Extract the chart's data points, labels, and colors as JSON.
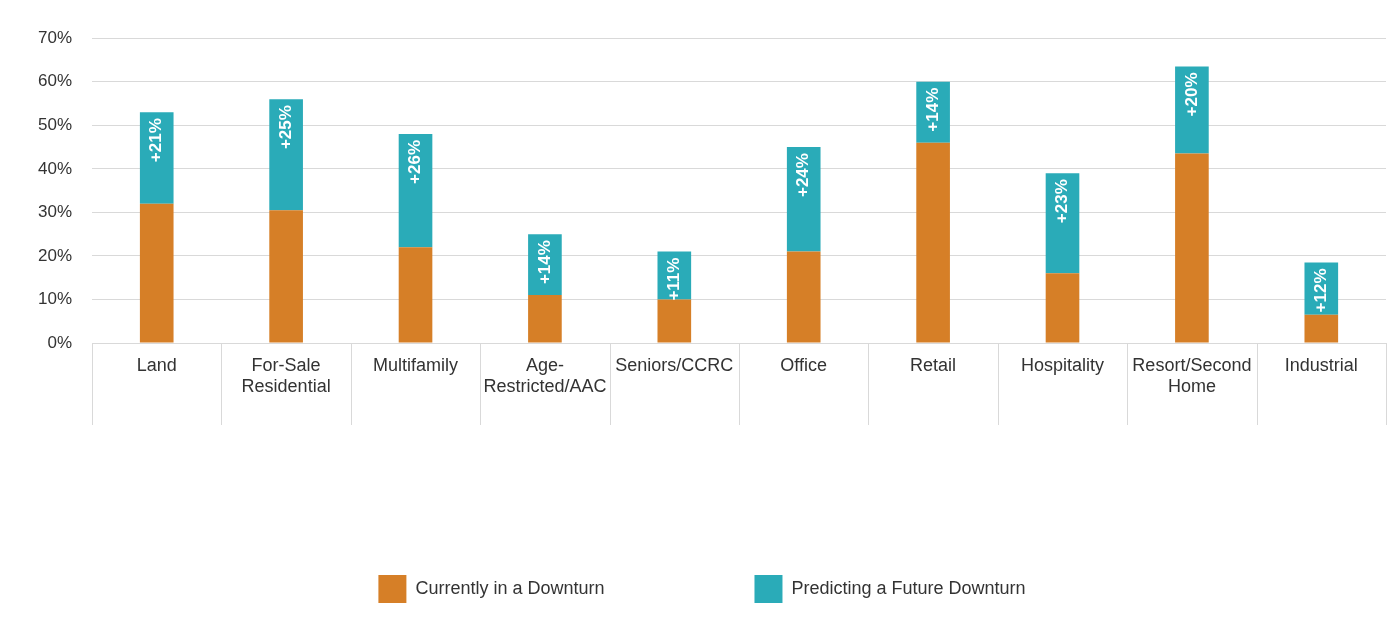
{
  "chart_data": {
    "type": "bar",
    "stacked": true,
    "categories": [
      "Land",
      "For-Sale\nResidential",
      "Multifamily",
      "Age-\nRestricted/AAC",
      "Seniors/CCRC",
      "Office",
      "Retail",
      "Hospitality",
      "Resort/Second\nHome",
      "Industrial"
    ],
    "series": [
      {
        "name": "Currently in a Downturn",
        "color": "#d67f27",
        "values": [
          32,
          30.5,
          22,
          11,
          10,
          21,
          46,
          16,
          43.5,
          6.5
        ]
      },
      {
        "name": "Predicting a Future Downturn",
        "color": "#2aabb8",
        "values": [
          21,
          25.5,
          26,
          14,
          11,
          24,
          14,
          23,
          20,
          12
        ],
        "value_labels": [
          "+21%",
          "+25%",
          "+26%",
          "+14%",
          "+11%",
          "+24%",
          "+14%",
          "+23%",
          "+20%",
          "+12%"
        ]
      }
    ],
    "ylim": [
      0,
      70
    ],
    "yticks": [
      {
        "value": 0,
        "label": "0%"
      },
      {
        "value": 10,
        "label": "10%"
      },
      {
        "value": 20,
        "label": "20%"
      },
      {
        "value": 30,
        "label": "30%"
      },
      {
        "value": 40,
        "label": "40%"
      },
      {
        "value": 50,
        "label": "50%"
      },
      {
        "value": 60,
        "label": "60%"
      },
      {
        "value": 70,
        "label": "70%"
      }
    ],
    "grid": "y",
    "legend": "bottom"
  }
}
